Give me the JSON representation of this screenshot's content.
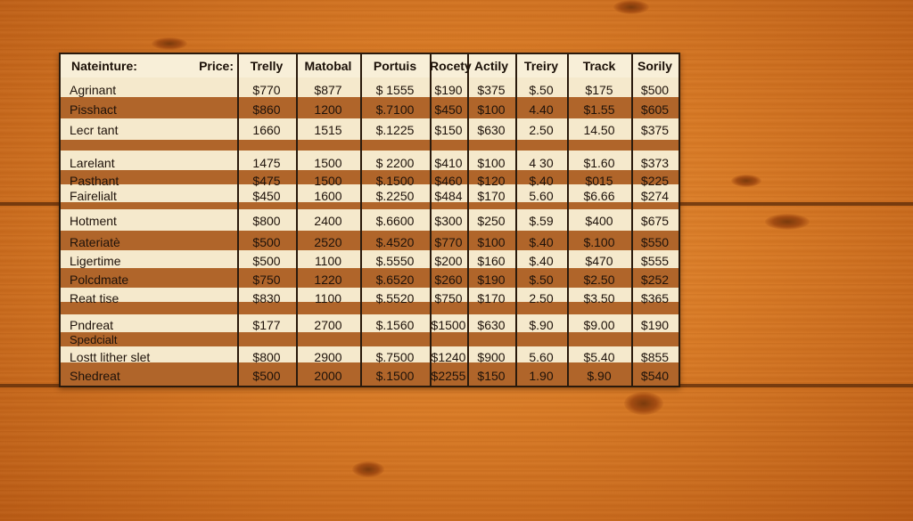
{
  "table": {
    "headers": [
      "Nateinture:",
      "Price:",
      "Trelly",
      "Matobal",
      "Portuis",
      "Rocety",
      "Actily",
      "Treiry",
      "Track",
      "Sorily"
    ],
    "rows": [
      {
        "name": "Agrinant",
        "values": [
          "$770",
          "$877",
          "$ 1555",
          "$190",
          "$375",
          "$.50",
          "$175",
          "$500"
        ]
      },
      {
        "name": "Pisshact",
        "values": [
          "$860",
          "1200",
          "$.7100",
          "$450",
          "$100",
          "4.40",
          "$1.55",
          "$605"
        ]
      },
      {
        "name": "Lecr tant",
        "values": [
          "1660",
          "1515",
          "$.1225",
          "$150",
          "$630",
          "2.50",
          "14.50",
          "$375"
        ]
      },
      {
        "name": "Larelant",
        "values": [
          "1475",
          "1500",
          "$ 2200",
          "$410",
          "$100",
          "4 30",
          "$1.60",
          "$373"
        ]
      },
      {
        "name": "Pasthant",
        "values": [
          "$475",
          "1500",
          "$.1500",
          "$460",
          "$120",
          "$.40",
          "$015",
          "$225"
        ]
      },
      {
        "name": "Fairelialt",
        "values": [
          "$450",
          "1600",
          "$.2250",
          "$484",
          "$170",
          "5.60",
          "$6.66",
          "$274"
        ]
      },
      {
        "name": "Hotment",
        "values": [
          "$800",
          "2400",
          "$.6600",
          "$300",
          "$250",
          "$.59",
          "$400",
          "$675"
        ]
      },
      {
        "name": "Rateriatè",
        "values": [
          "$500",
          "2520",
          "$.4520",
          "$770",
          "$100",
          "$.40",
          "$.100",
          "$550"
        ]
      },
      {
        "name": "Ligertime",
        "values": [
          "$500",
          "1100",
          "$.5550",
          "$200",
          "$160",
          "$.40",
          "$470",
          "$555"
        ]
      },
      {
        "name": "Polcdmate",
        "values": [
          "$750",
          "1220",
          "$.6520",
          "$260",
          "$190",
          "$.50",
          "$2.50",
          "$252"
        ]
      },
      {
        "name": "Reat tise",
        "values": [
          "$830",
          "1100",
          "$.5520",
          "$750",
          "$170",
          "2.50",
          "$3.50",
          "$365"
        ]
      },
      {
        "name": "Pndreat",
        "values": [
          "$177",
          "2700",
          "$.1560",
          "$1500",
          "$630",
          "$.90",
          "$9.00",
          "$190"
        ]
      },
      {
        "name": "Lostt lither slet",
        "values": [
          "$800",
          "2900",
          "$.7500",
          "$1240",
          "$900",
          "5.60",
          "$5.40",
          "$855"
        ]
      },
      {
        "name": "Shedreat",
        "values": [
          "$500",
          "2000",
          "$.1500",
          "$2255",
          "$150",
          "1.90",
          "$.90",
          "$540"
        ]
      }
    ],
    "extra_label": "Spedcialt"
  },
  "colors": {
    "sheet": "#f6ead0",
    "stripe_dark": "#b0652a",
    "wood": "#d97a25",
    "ink": "#1e120a"
  }
}
